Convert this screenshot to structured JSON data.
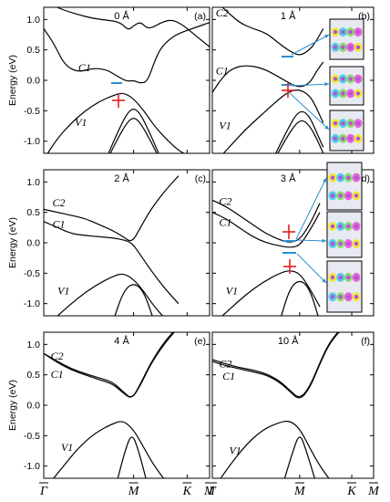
{
  "chart_data": [
    {
      "type": "line",
      "panel": "(a)",
      "title": "0 Å",
      "ylabel": "Energy (eV)",
      "ylim": [
        -1.2,
        1.2
      ],
      "yticks": [
        "1.0",
        "0.5",
        "0.0",
        "-0.5",
        "-1.0"
      ],
      "band_labels": [
        "C1",
        "V1"
      ],
      "series": [
        {
          "x": [
            0,
            0.3,
            0.6,
            1.0,
            1.4,
            1.8,
            2.2,
            2.45,
            2.6,
            2.8,
            3.0,
            3.2,
            3.4,
            3.7,
            4.0,
            4.3,
            4.8
          ],
          "y": [
            1.3,
            1.22,
            1.15,
            1.08,
            1.02,
            0.99,
            0.96,
            0.82,
            0.9,
            0.96,
            0.85,
            0.88,
            0.95,
            1.0,
            0.92,
            0.78,
            0.55
          ]
        },
        {
          "x": [
            0,
            0.3,
            0.6,
            1.0,
            1.4,
            1.8,
            2.1,
            2.4,
            2.6,
            2.8,
            3.0,
            3.2,
            3.4,
            3.8,
            4.3,
            4.8
          ],
          "y": [
            0.85,
            0.6,
            0.25,
            0.13,
            0.2,
            0.18,
            0.08,
            -0.02,
            0.0,
            -0.05,
            -0.02,
            0.3,
            0.55,
            0.75,
            0.85,
            0.95
          ]
        },
        {
          "x": [
            0,
            0.4,
            0.8,
            1.2,
            1.6,
            2.0,
            2.3,
            2.6,
            2.9,
            3.2,
            3.6,
            4.0,
            4.5,
            4.8
          ],
          "y": [
            -1.3,
            -0.95,
            -0.7,
            -0.5,
            -0.35,
            -0.25,
            -0.2,
            -0.3,
            -0.5,
            -0.75,
            -1.0,
            -1.2,
            -1.3,
            -1.35
          ]
        },
        {
          "x": [
            1.8,
            2.1,
            2.4,
            2.6,
            2.8,
            3.1,
            3.4
          ],
          "y": [
            -1.3,
            -0.9,
            -0.55,
            -0.45,
            -0.55,
            -0.9,
            -1.3
          ]
        },
        {
          "x": [
            1.8,
            2.1,
            2.4,
            2.6,
            2.8,
            3.1,
            3.4
          ],
          "y": [
            -1.35,
            -1.0,
            -0.7,
            -0.6,
            -0.7,
            -1.0,
            -1.35
          ]
        }
      ]
    },
    {
      "type": "line",
      "panel": "(b)",
      "title": "1 Å",
      "ylim": [
        -1.2,
        1.2
      ],
      "band_labels": [
        "C2",
        "C1",
        "V1"
      ],
      "series": [
        {
          "x": [
            0,
            0.4,
            0.8,
            1.2,
            1.6,
            2.0,
            2.3,
            2.6,
            2.9,
            3.1,
            3.3
          ],
          "y": [
            1.35,
            1.15,
            0.95,
            0.85,
            0.78,
            0.6,
            0.48,
            0.4,
            0.5,
            0.65,
            0.85
          ]
        },
        {
          "x": [
            0,
            0.3,
            0.6,
            1.0,
            1.5,
            2.0,
            2.3,
            2.6,
            2.9,
            3.1,
            3.3
          ],
          "y": [
            -0.2,
            0.05,
            0.2,
            0.25,
            0.2,
            0.05,
            -0.05,
            -0.12,
            -0.05,
            0.15,
            0.3
          ]
        },
        {
          "x": [
            0,
            0.5,
            1.0,
            1.5,
            2.0,
            2.3,
            2.6,
            2.9,
            3.1,
            3.3
          ],
          "y": [
            -1.4,
            -1.1,
            -0.8,
            -0.55,
            -0.3,
            -0.18,
            -0.15,
            -0.25,
            -0.45,
            -0.7
          ]
        },
        {
          "x": [
            1.8,
            2.2,
            2.5,
            2.7,
            2.9,
            3.1,
            3.3
          ],
          "y": [
            -1.3,
            -0.85,
            -0.55,
            -0.5,
            -0.6,
            -0.85,
            -1.1
          ]
        },
        {
          "x": [
            1.8,
            2.2,
            2.5,
            2.7,
            2.9,
            3.1,
            3.3
          ],
          "y": [
            -1.35,
            -0.95,
            -0.7,
            -0.65,
            -0.75,
            -0.95,
            -1.2
          ]
        }
      ]
    },
    {
      "type": "line",
      "panel": "(c)",
      "title": "2 Å",
      "ylabel": "Energy (eV)",
      "ylim": [
        -1.2,
        1.2
      ],
      "yticks": [
        "1.0",
        "0.5",
        "0.0",
        "-0.5",
        "-1.0"
      ],
      "band_labels": [
        "C2",
        "C1",
        "V1"
      ],
      "series": [
        {
          "x": [
            0,
            0.4,
            0.8,
            1.2,
            1.6,
            2.0,
            2.3,
            2.55,
            2.8,
            3.1,
            3.5,
            3.9
          ],
          "y": [
            0.55,
            0.5,
            0.45,
            0.4,
            0.3,
            0.2,
            0.1,
            0.0,
            0.25,
            0.55,
            0.85,
            1.1
          ]
        },
        {
          "x": [
            0,
            0.4,
            0.8,
            1.2,
            1.6,
            2.0,
            2.3,
            2.55,
            2.8,
            3.1,
            3.5,
            3.9
          ],
          "y": [
            0.35,
            0.25,
            0.15,
            0.12,
            0.1,
            0.08,
            0.05,
            0.0,
            -0.2,
            -0.45,
            -0.75,
            -1.0
          ]
        },
        {
          "x": [
            0,
            0.5,
            1.0,
            1.5,
            2.0,
            2.3,
            2.6,
            2.9,
            3.2,
            3.6
          ],
          "y": [
            -1.4,
            -1.15,
            -0.9,
            -0.7,
            -0.55,
            -0.5,
            -0.6,
            -0.8,
            -1.05,
            -1.3
          ]
        },
        {
          "x": [
            2.0,
            2.3,
            2.6,
            2.9,
            3.2
          ],
          "y": [
            -1.3,
            -0.8,
            -0.65,
            -0.8,
            -1.3
          ]
        }
      ]
    },
    {
      "type": "line",
      "panel": "(d)",
      "title": "3 Å",
      "ylim": [
        -1.2,
        1.2
      ],
      "band_labels": [
        "C2",
        "C1",
        "V1"
      ],
      "series": [
        {
          "x": [
            0,
            0.4,
            0.8,
            1.2,
            1.6,
            2.0,
            2.3,
            2.6,
            2.9,
            3.2
          ],
          "y": [
            0.7,
            0.6,
            0.45,
            0.3,
            0.15,
            0.05,
            0.0,
            0.05,
            0.3,
            0.65
          ]
        },
        {
          "x": [
            0,
            0.4,
            0.8,
            1.2,
            1.6,
            2.0,
            2.3,
            2.6,
            2.9,
            3.2
          ],
          "y": [
            0.5,
            0.4,
            0.25,
            0.1,
            0.0,
            -0.05,
            -0.08,
            -0.05,
            0.2,
            0.5
          ]
        },
        {
          "x": [
            0,
            0.5,
            1.0,
            1.5,
            2.0,
            2.3,
            2.6,
            2.9,
            3.2
          ],
          "y": [
            -1.35,
            -1.1,
            -0.85,
            -0.65,
            -0.5,
            -0.45,
            -0.5,
            -0.75,
            -1.05
          ]
        },
        {
          "x": [
            2.0,
            2.3,
            2.6,
            2.9,
            3.2
          ],
          "y": [
            -1.3,
            -0.75,
            -0.6,
            -0.75,
            -1.3
          ]
        }
      ]
    },
    {
      "type": "line",
      "panel": "(e)",
      "title": "4 Å",
      "ylabel": "Energy (eV)",
      "ylim": [
        -1.2,
        1.2
      ],
      "yticks": [
        "1.0",
        "0.5",
        "0.0",
        "-0.5",
        "-1.0"
      ],
      "band_labels": [
        "C2",
        "C1",
        "V1"
      ],
      "series": [
        {
          "x": [
            0,
            0.4,
            0.8,
            1.2,
            1.6,
            2.0,
            2.3,
            2.55,
            2.8,
            3.1,
            3.5,
            3.9
          ],
          "y": [
            0.85,
            0.72,
            0.6,
            0.52,
            0.45,
            0.38,
            0.22,
            0.1,
            0.35,
            0.7,
            1.05,
            1.3
          ]
        },
        {
          "x": [
            0,
            0.4,
            0.8,
            1.2,
            1.6,
            2.0,
            2.3,
            2.55,
            2.8,
            3.1,
            3.5,
            3.9
          ],
          "y": [
            0.85,
            0.7,
            0.58,
            0.5,
            0.42,
            0.35,
            0.2,
            0.1,
            0.33,
            0.68,
            1.02,
            1.28
          ]
        },
        {
          "x": [
            0,
            0.5,
            1.0,
            1.5,
            2.0,
            2.3,
            2.6,
            2.9,
            3.2,
            3.6
          ],
          "y": [
            -1.4,
            -1.05,
            -0.7,
            -0.45,
            -0.3,
            -0.25,
            -0.4,
            -0.7,
            -1.0,
            -1.3
          ]
        },
        {
          "x": [
            2.1,
            2.35,
            2.55,
            2.75,
            3.0
          ],
          "y": [
            -1.3,
            -0.75,
            -0.45,
            -0.75,
            -1.3
          ]
        }
      ]
    },
    {
      "type": "line",
      "panel": "(f)",
      "title": "10 Å",
      "ylim": [
        -1.2,
        1.2
      ],
      "band_labels": [
        "C2",
        "C1",
        "V1"
      ],
      "series": [
        {
          "x": [
            0,
            0.4,
            0.8,
            1.2,
            1.6,
            2.0,
            2.3,
            2.6,
            2.9,
            3.2,
            3.5,
            3.9
          ],
          "y": [
            0.75,
            0.68,
            0.62,
            0.58,
            0.52,
            0.4,
            0.25,
            0.1,
            0.3,
            0.7,
            1.05,
            1.3
          ]
        },
        {
          "x": [
            0,
            0.4,
            0.8,
            1.2,
            1.6,
            2.0,
            2.3,
            2.6,
            2.9,
            3.2,
            3.5,
            3.9
          ],
          "y": [
            0.72,
            0.65,
            0.6,
            0.55,
            0.5,
            0.38,
            0.23,
            0.08,
            0.28,
            0.68,
            1.03,
            1.28
          ]
        },
        {
          "x": [
            0,
            0.5,
            1.0,
            1.5,
            2.0,
            2.3,
            2.6,
            2.9,
            3.2,
            3.6
          ],
          "y": [
            -1.4,
            -1.0,
            -0.65,
            -0.4,
            -0.28,
            -0.25,
            -0.38,
            -0.7,
            -1.0,
            -1.3
          ]
        },
        {
          "x": [
            2.1,
            2.4,
            2.6,
            2.8,
            3.1
          ],
          "y": [
            -1.3,
            -0.75,
            -0.45,
            -0.75,
            -1.3
          ]
        }
      ]
    }
  ],
  "x_axis_labels": [
    "Γ",
    "M",
    "K",
    "M"
  ],
  "x_axis_ticks": [
    0,
    2.6,
    4.15,
    4.8
  ],
  "colors": {
    "line": "#000000",
    "marker": "#e0201c",
    "arrow": "#2b8fd0",
    "inset_bg": "#e8eaf2"
  }
}
